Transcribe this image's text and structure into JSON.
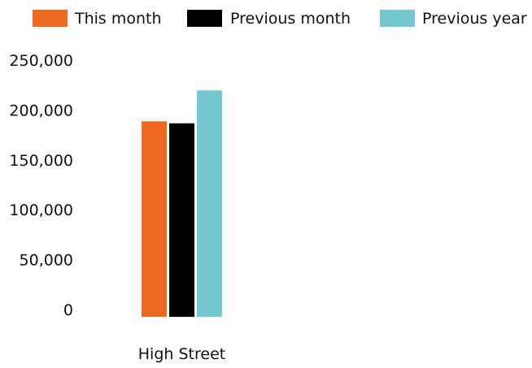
{
  "chart_data": {
    "type": "bar",
    "categories": [
      "High Street"
    ],
    "series": [
      {
        "name": "This month",
        "values": [
          196000
        ],
        "color": "#EC6A1F"
      },
      {
        "name": "Previous month",
        "values": [
          194000
        ],
        "color": "#000000"
      },
      {
        "name": "Previous year",
        "values": [
          227000
        ],
        "color": "#74C7CE"
      }
    ],
    "ylim": [
      0,
      250000
    ],
    "yticks": [
      "0",
      "50,000",
      "100,000",
      "150,000",
      "200,000",
      "250,000"
    ],
    "ytick_values": [
      0,
      50000,
      100000,
      150000,
      200000,
      250000
    ],
    "legend_position": "top",
    "grid": false,
    "title": "",
    "xlabel": "",
    "ylabel": ""
  }
}
